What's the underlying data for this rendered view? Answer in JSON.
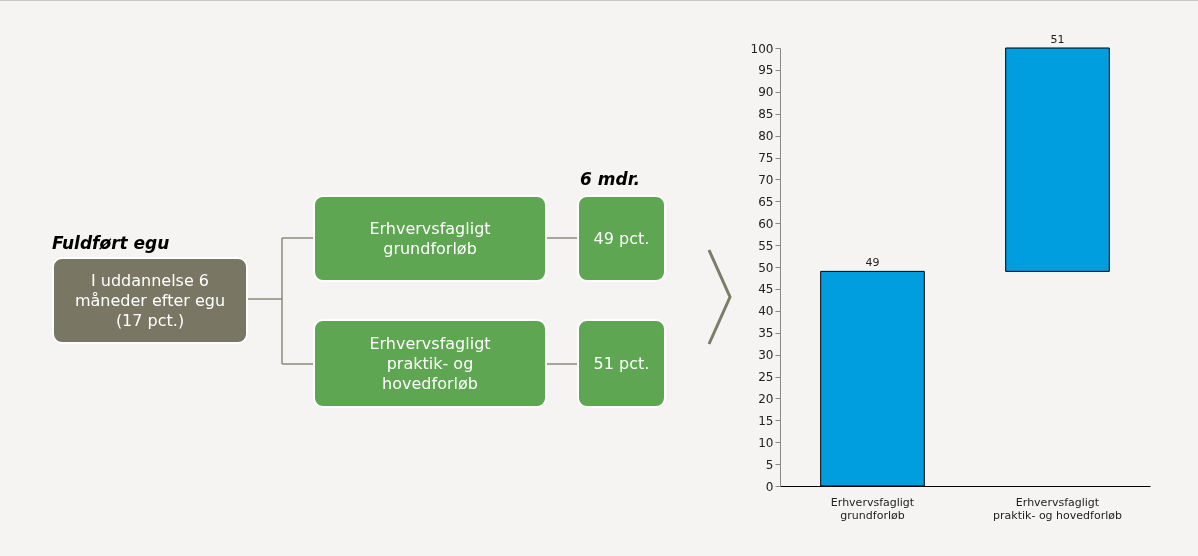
{
  "chart_data": [
    {
      "type": "other",
      "title": "Fuldført egu",
      "annotations": [
        "I uddannelse 6 måneder efter egu (17 pct.)",
        "Erhvervsfagligt grundforløb",
        "Erhvervsfagligt praktik- og hovedforløb",
        "6 mdr.",
        "49 pct.",
        "51 pct."
      ]
    },
    {
      "type": "bar",
      "categories": [
        "Erhvervsfagligt grundforløb",
        "Erhvervsfagligt praktik- og hovedforløb"
      ],
      "values": [
        49,
        51
      ],
      "color": "#009ddf",
      "base": [
        0,
        49
      ],
      "data_labels": true,
      "ylim": [
        0,
        100
      ],
      "yticks": [
        0,
        5,
        10,
        15,
        20,
        25,
        30,
        35,
        40,
        45,
        50,
        55,
        60,
        65,
        70,
        75,
        80,
        85,
        90,
        95,
        100
      ]
    }
  ]
}
